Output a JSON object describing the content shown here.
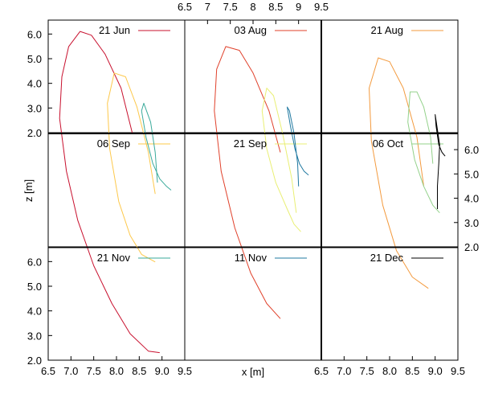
{
  "chart_data": {
    "type": "line",
    "layout": "3x3 small multiples",
    "xlabel": "x [m]",
    "ylabel": "z [m]",
    "xlim": [
      6.5,
      9.5
    ],
    "ylim": [
      2.0,
      6.5
    ],
    "xticks": [
      "6.5",
      "7",
      "7.5",
      "8",
      "8.5",
      "9",
      "9.5"
    ],
    "xticks_bottom_left": [
      "6.5",
      "7.0",
      "7.5",
      "8.0",
      "8.5",
      "9.0",
      "9.5"
    ],
    "yticks": [
      "2.0",
      "3.0",
      "4.0",
      "5.0",
      "6.0"
    ],
    "grid": false,
    "legend_position": "top-right of each panel",
    "panels": [
      {
        "name": "21 Jun",
        "color": "#c8102e",
        "x": [
          8.35,
          8.1,
          7.75,
          7.45,
          7.2,
          6.95,
          6.8,
          6.75,
          6.9,
          7.15,
          7.5,
          7.9,
          8.3,
          8.7,
          8.95
        ],
        "y": [
          5.0,
          5.6,
          6.05,
          6.3,
          6.35,
          6.15,
          5.75,
          5.2,
          4.5,
          3.85,
          3.25,
          2.75,
          2.35,
          2.12,
          2.1
        ]
      },
      {
        "name": "03 Aug",
        "color": "#e0402a",
        "x": [
          8.6,
          8.35,
          8.0,
          7.7,
          7.4,
          7.2,
          7.15,
          7.3,
          7.6,
          7.95,
          8.3,
          8.6
        ],
        "y": [
          4.75,
          5.3,
          5.8,
          6.1,
          6.15,
          5.85,
          5.3,
          4.5,
          3.75,
          3.15,
          2.75,
          2.55
        ]
      },
      {
        "name": "21 Aug",
        "color": "#f39a3e",
        "x": [
          8.75,
          8.6,
          8.3,
          8.0,
          7.75,
          7.55,
          7.6,
          7.85,
          8.15,
          8.5,
          8.85
        ],
        "y": [
          4.3,
          4.95,
          5.6,
          5.95,
          6.0,
          5.6,
          4.9,
          4.05,
          3.45,
          3.1,
          2.95
        ]
      },
      {
        "name": "06 Sep",
        "color": "#fdc84a",
        "x": [
          8.85,
          8.7,
          8.45,
          8.2,
          7.95,
          7.8,
          7.85,
          8.05,
          8.3,
          8.55,
          8.85
        ],
        "y": [
          4.2,
          4.75,
          5.35,
          5.75,
          5.8,
          5.4,
          4.8,
          4.1,
          3.65,
          3.4,
          3.3
        ]
      },
      {
        "name": "21 Sep",
        "color": "#e9ef74",
        "x": [
          8.95,
          8.85,
          8.65,
          8.45,
          8.3,
          8.2,
          8.3,
          8.5,
          8.75,
          8.9,
          9.05
        ],
        "y": [
          3.95,
          4.4,
          5.0,
          5.5,
          5.6,
          5.3,
          4.8,
          4.35,
          4.0,
          3.8,
          3.7
        ]
      },
      {
        "name": "06 Oct",
        "color": "#93d18a",
        "x": [
          8.95,
          8.9,
          8.75,
          8.6,
          8.45,
          8.4,
          8.55,
          8.75,
          8.95,
          9.1
        ],
        "y": [
          4.6,
          4.95,
          5.35,
          5.55,
          5.55,
          5.15,
          4.65,
          4.3,
          4.05,
          3.95
        ]
      },
      {
        "name": "21 Nov",
        "color": "#3aaa9b",
        "x": [
          8.9,
          8.85,
          8.75,
          8.6,
          8.55,
          8.65,
          8.8,
          8.95,
          9.1,
          9.2
        ],
        "y": [
          4.35,
          4.75,
          5.15,
          5.4,
          5.3,
          4.95,
          4.6,
          4.4,
          4.3,
          4.25
        ]
      },
      {
        "name": "11 Nov",
        "color": "#1f78a0",
        "x": [
          9.0,
          8.98,
          8.9,
          8.8,
          8.75,
          8.82,
          8.92,
          9.02,
          9.12,
          9.22
        ],
        "y": [
          4.3,
          4.6,
          5.0,
          5.3,
          5.35,
          5.1,
          4.8,
          4.6,
          4.5,
          4.45
        ]
      },
      {
        "name": "21 Dec",
        "color": "#000000",
        "x": [
          9.05,
          9.05,
          9.08,
          9.1,
          9.0,
          9.02,
          9.08,
          9.15,
          9.22
        ],
        "y": [
          4.0,
          4.3,
          4.6,
          4.85,
          5.25,
          5.1,
          4.85,
          4.75,
          4.7
        ]
      }
    ]
  }
}
